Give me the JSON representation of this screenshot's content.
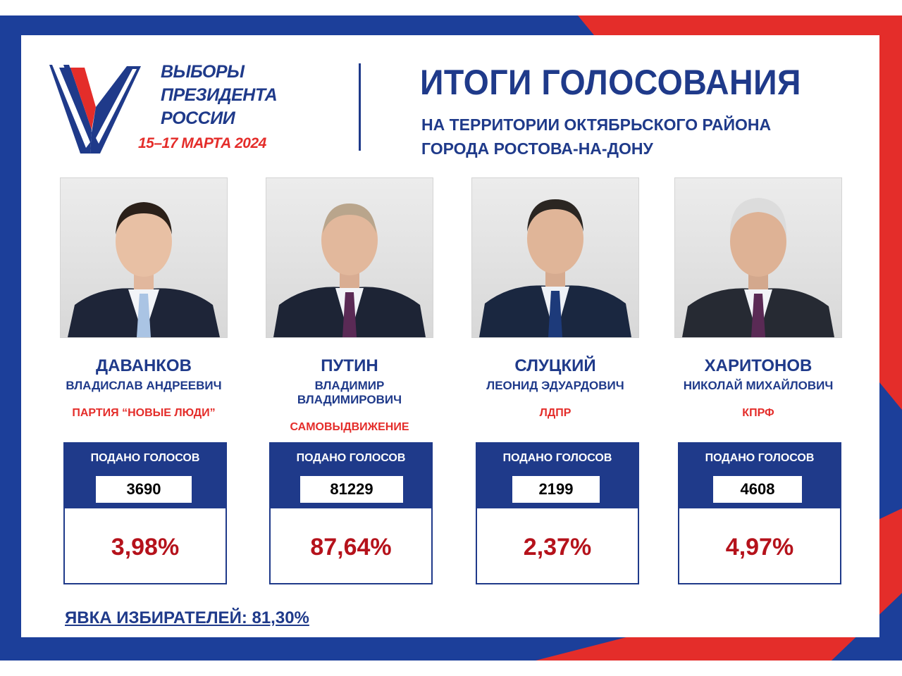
{
  "logo": {
    "line1": "ВЫБОРЫ",
    "line2": "ПРЕЗИДЕНТА",
    "line3": "РОССИИ",
    "dates": "15–17 МАРТА 2024"
  },
  "header": {
    "title": "ИТОГИ ГОЛОСОВАНИЯ",
    "subtitle_line1": "НА ТЕРРИТОРИИ ОКТЯБРЬСКОГО РАЙОНА",
    "subtitle_line2": "ГОРОДА РОСТОВА-НА-ДОНУ"
  },
  "colors": {
    "blue": "#1f3a8a",
    "red": "#e42d2a",
    "percent_red": "#b5121b"
  },
  "candidates": [
    {
      "surname": "ДАВАНКОВ",
      "given_names": "ВЛАДИСЛАВ АНДРЕЕВИЧ",
      "party": "ПАРТИЯ “НОВЫЕ ЛЮДИ”",
      "votes_label": "ПОДАНО ГОЛОСОВ",
      "votes": "3690",
      "percent": "3,98%"
    },
    {
      "surname": "ПУТИН",
      "given_names": "ВЛАДИМИР ВЛАДИМИРОВИЧ",
      "party": "САМОВЫДВИЖЕНИЕ",
      "votes_label": "ПОДАНО ГОЛОСОВ",
      "votes": "81229",
      "percent": "87,64%"
    },
    {
      "surname": "СЛУЦКИЙ",
      "given_names": "ЛЕОНИД ЭДУАРДОВИЧ",
      "party": "ЛДПР",
      "votes_label": "ПОДАНО ГОЛОСОВ",
      "votes": "2199",
      "percent": "2,37%"
    },
    {
      "surname": "ХАРИТОНОВ",
      "given_names": "НИКОЛАЙ МИХАЙЛОВИЧ",
      "party": "КПРФ",
      "votes_label": "ПОДАНО ГОЛОСОВ",
      "votes": "4608",
      "percent": "4,97%"
    }
  ],
  "footer": {
    "turnout": "ЯВКА ИЗБИРАТЕЛЕЙ: 81,30%"
  }
}
